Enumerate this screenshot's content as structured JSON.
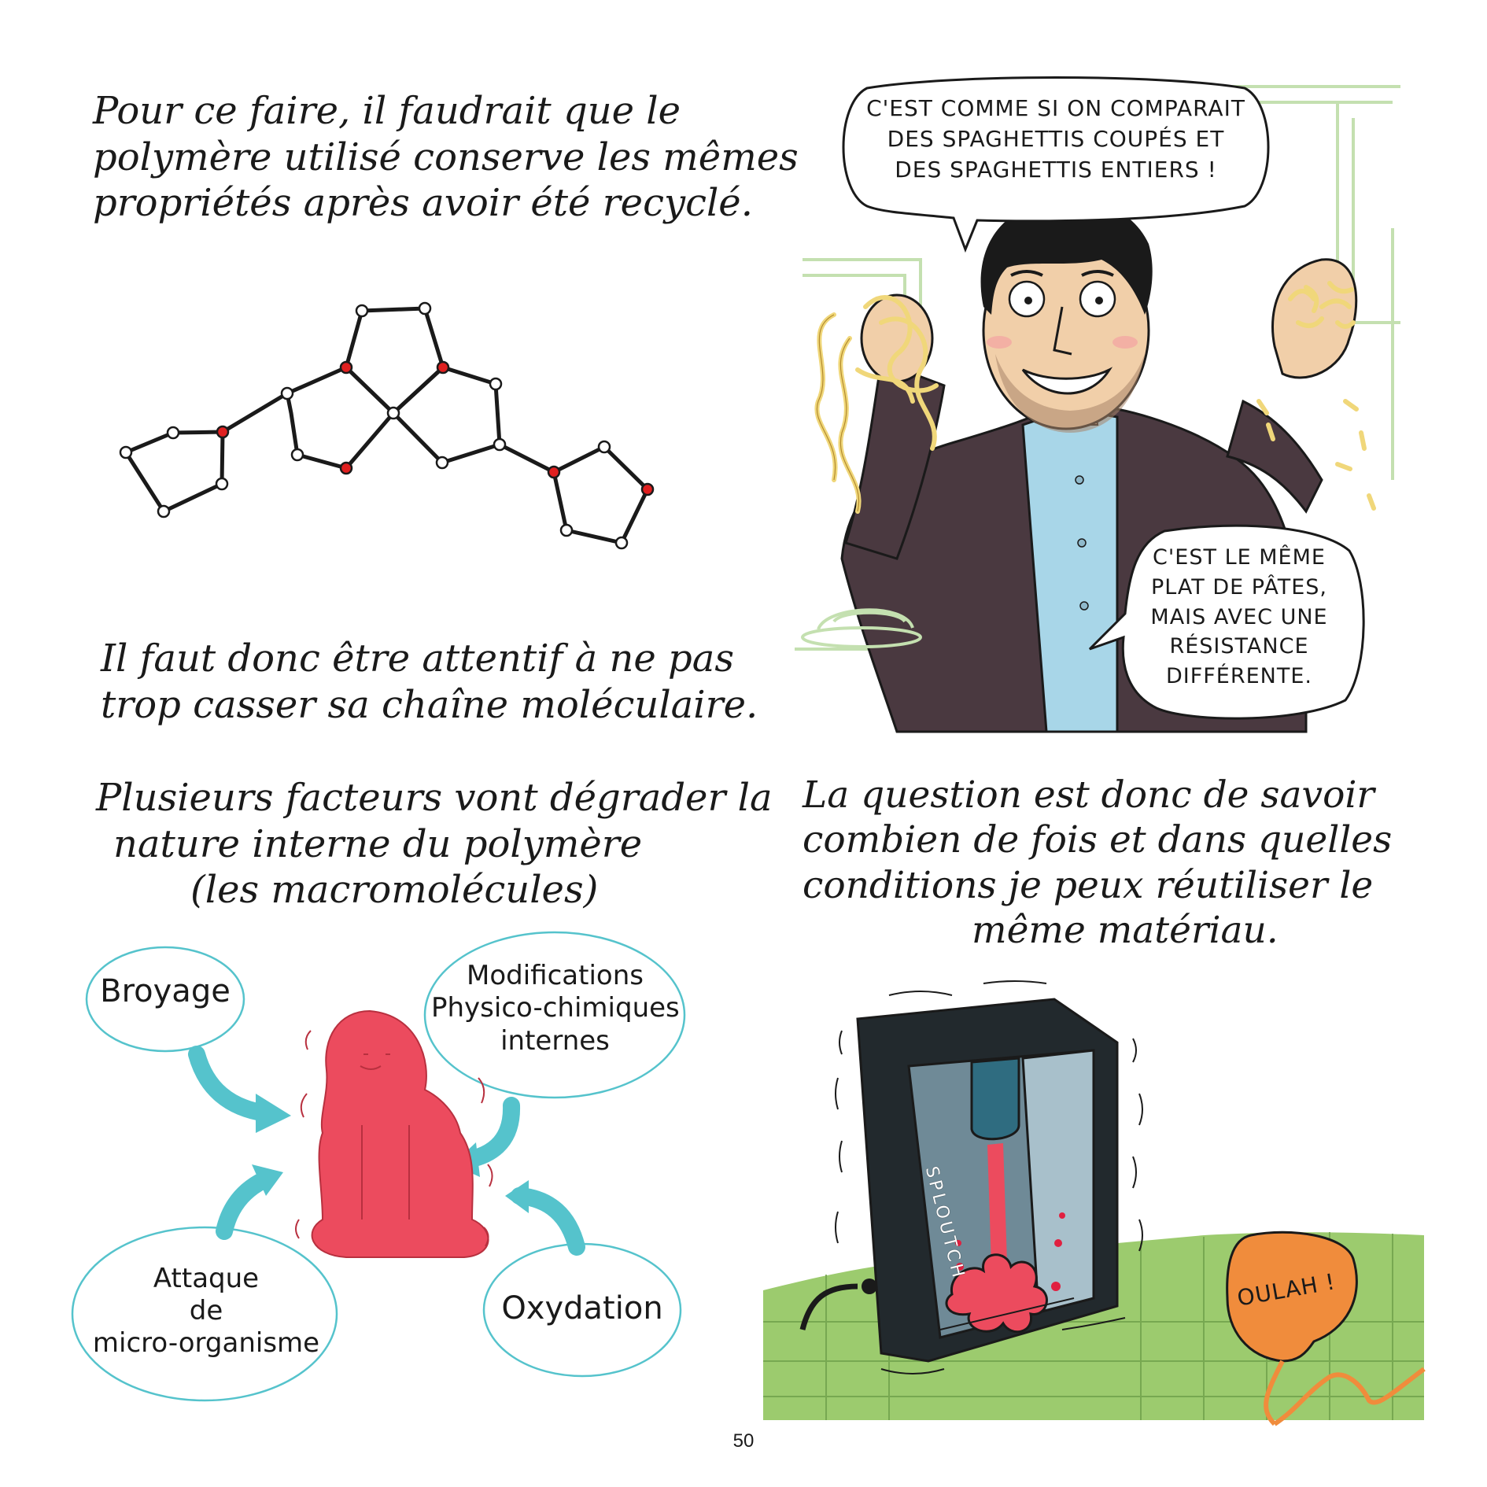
{
  "left_column": {
    "text_1": [
      "Pour ce faire, il faudrait que le",
      "polymère utilisé conserve les mêmes",
      "propriétés après avoir été recyclé."
    ],
    "text_2": [
      "Il faut donc être attentif à ne pas",
      "trop casser sa chaîne moléculaire."
    ],
    "text_3": [
      "Plusieurs facteurs vont dégrader la",
      "nature interne du polymère",
      "(les macromolécules)"
    ],
    "factors": {
      "grinding": [
        "Broyage"
      ],
      "physico_chemical": [
        "Modifications",
        "Physico-chimiques",
        "internes"
      ],
      "microorganism": [
        "Attaque",
        "de",
        "micro-organisme"
      ],
      "oxidation": [
        "Oxydation"
      ]
    }
  },
  "right_column": {
    "bubble_top": [
      "C'est comme si on comparait",
      "des spaghettis coupés et",
      "des spaghettis entiers !"
    ],
    "bubble_bottom": [
      "C'est le même",
      "plat de pâtes,",
      "mais avec une",
      "résistance",
      "différente."
    ],
    "text_question": [
      "La question est donc de savoir",
      "combien de fois et dans quelles",
      "conditions je peux réutiliser le",
      "même matériau."
    ],
    "sound_effect": "SPLOUTCH",
    "exclamation": "OULAH !"
  },
  "page_number": "50",
  "colors": {
    "teal": "#55c3cc",
    "pink_figure": "#ec4b5e",
    "atom_red": "#e02020",
    "green_floor": "#9ccb6e",
    "orange_bubble": "#f08c3c",
    "jacket": "#4a3940",
    "shirt": "#a8d6e8",
    "skin": "#f1cfa9",
    "pasta": "#f0d77a",
    "machine_dark": "#22292d",
    "machine_inner": "#6f8a97"
  }
}
